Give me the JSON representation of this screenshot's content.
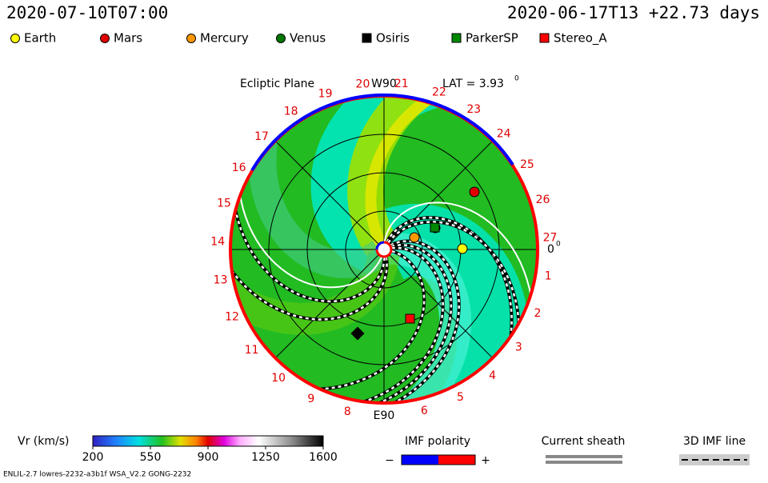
{
  "header": {
    "time": "2020-07-10T07:00",
    "run": "2020-06-17T13 +22.73 days"
  },
  "legend": [
    {
      "name": "Earth",
      "color": "#ffff00",
      "shape": "circle"
    },
    {
      "name": "Mars",
      "color": "#e00000",
      "shape": "circle"
    },
    {
      "name": "Mercury",
      "color": "#ff9900",
      "shape": "circle"
    },
    {
      "name": "Venus",
      "color": "#007700",
      "shape": "circle"
    },
    {
      "name": "Osiris",
      "color": "#000000",
      "shape": "square"
    },
    {
      "name": "ParkerSP",
      "color": "#008800",
      "shape": "square"
    },
    {
      "name": "Stereo_A",
      "color": "#ff0000",
      "shape": "square"
    }
  ],
  "plot": {
    "title": "Ecliptic Plane",
    "top_label": "W90",
    "bottom_label": "E90",
    "lat_label": "LAT = 3.93",
    "lat_sup": "0",
    "angle_label": "0",
    "angle_sup": "0",
    "longitudes": [
      "1",
      "2",
      "3",
      "4",
      "5",
      "6",
      "8",
      "9",
      "10",
      "11",
      "12",
      "13",
      "14",
      "15",
      "16",
      "17",
      "18",
      "19",
      "20",
      "21",
      "22",
      "23",
      "24",
      "25",
      "26",
      "27"
    ]
  },
  "colorbar": {
    "label": "Vr (km/s)",
    "range": [
      200,
      1600
    ],
    "ticks": [
      200,
      550,
      900,
      1250,
      1600
    ]
  },
  "keys": {
    "imf_polarity": "IMF polarity",
    "minus": "−",
    "plus": "+",
    "current_sheath": "Current sheath",
    "imf_line": "3D IMF line"
  },
  "footer": "ENLIL-2.7 lowres-2232-a3b1f WSA_V2.2 GONG-2232"
}
